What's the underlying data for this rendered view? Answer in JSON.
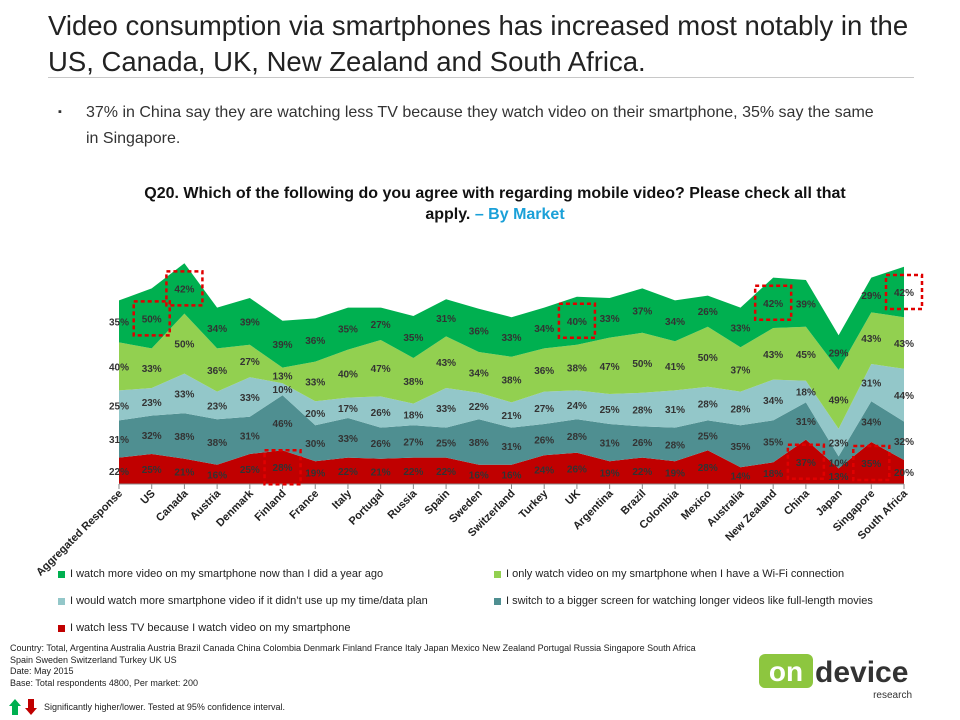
{
  "slide": {
    "title": "Video consumption via smartphones has increased most notably in the US, Canada, UK, New Zealand and South Africa.",
    "bullet_marker": "▪",
    "bullet": "37% in China say they are watching less TV because they watch video on their smartphone, 35% say the same in Singapore."
  },
  "chart_data": {
    "type": "area",
    "title": "Q20. Which of the following do you agree with regarding mobile video?  Please check all that apply.",
    "subtitle": "– By Market",
    "stacked": true,
    "categories": [
      "Aggregated Response",
      "US",
      "Canada",
      "Austria",
      "Denmark",
      "Finland",
      "France",
      "Italy",
      "Portugal",
      "Russia",
      "Spain",
      "Sweden",
      "Switzerland",
      "Turkey",
      "UK",
      "Argentina",
      "Brazil",
      "Colombia",
      "Mexico",
      "Australia",
      "New Zealand",
      "China",
      "Japan",
      "Singapore",
      "South Africa"
    ],
    "series": [
      {
        "name": "I watch less TV because I watch video on my smartphone",
        "color": "#c00000",
        "values": [
          22,
          25,
          21,
          16,
          25,
          28,
          19,
          22,
          21,
          22,
          22,
          16,
          16,
          24,
          26,
          19,
          22,
          19,
          28,
          14,
          18,
          37,
          13,
          35,
          20
        ]
      },
      {
        "name": "I switch to a bigger screen for watching longer videos like full-length movies",
        "color": "#4f8f91",
        "values": [
          31,
          32,
          38,
          38,
          31,
          46,
          30,
          33,
          26,
          27,
          25,
          38,
          31,
          26,
          28,
          31,
          26,
          28,
          25,
          35,
          35,
          31,
          10,
          34,
          32
        ]
      },
      {
        "name": "I would watch more smartphone video if it didn’t use up my time/data plan",
        "color": "#93c7c9",
        "values": [
          25,
          23,
          33,
          23,
          33,
          10,
          20,
          17,
          26,
          18,
          33,
          22,
          21,
          27,
          24,
          25,
          28,
          31,
          28,
          28,
          34,
          18,
          23,
          31,
          44
        ]
      },
      {
        "name": "I only watch video on my smartphone when I have a Wi-Fi connection",
        "color": "#92d050",
        "values": [
          40,
          33,
          50,
          36,
          27,
          13,
          33,
          40,
          47,
          38,
          43,
          34,
          38,
          36,
          38,
          47,
          50,
          41,
          50,
          37,
          43,
          45,
          49,
          43,
          43
        ]
      },
      {
        "name": "I watch more video on my smartphone now than I did a year ago",
        "color": "#00b050",
        "values": [
          35,
          50,
          42,
          34,
          39,
          39,
          36,
          35,
          27,
          35,
          31,
          36,
          33,
          34,
          40,
          33,
          37,
          34,
          26,
          33,
          42,
          39,
          29,
          29,
          42
        ]
      }
    ],
    "highlights": [
      {
        "category": "US",
        "series": "I watch more video on my smartphone now than I did a year ago",
        "direction": "higher"
      },
      {
        "category": "Canada",
        "series": "I watch more video on my smartphone now than I did a year ago",
        "direction": "higher"
      },
      {
        "category": "UK",
        "series": "I watch more video on my smartphone now than I did a year ago",
        "direction": "higher"
      },
      {
        "category": "New Zealand",
        "series": "I watch more video on my smartphone now than I did a year ago",
        "direction": "higher"
      },
      {
        "category": "South Africa",
        "series": "I watch more video on my smartphone now than I did a year ago",
        "direction": "higher"
      },
      {
        "category": "Finland",
        "series": "I watch less TV because I watch video on my smartphone",
        "direction": "higher"
      },
      {
        "category": "China",
        "series": "I watch less TV because I watch video on my smartphone",
        "direction": "higher"
      },
      {
        "category": "Singapore",
        "series": "I watch less TV because I watch video on my smartphone",
        "direction": "higher"
      }
    ],
    "grid": false,
    "legend_position": "bottom"
  },
  "legend": {
    "items": [
      {
        "label": "I watch more video on my smartphone now than I did a year ago",
        "color": "#00b050"
      },
      {
        "label": "I only watch video on my smartphone when I have a Wi-Fi connection",
        "color": "#92d050"
      },
      {
        "label": "I would watch more smartphone video if it didn’t use up my time/data plan",
        "color": "#93c7c9"
      },
      {
        "label": "I switch to a bigger screen for watching longer videos like full-length movies",
        "color": "#4f8f91"
      },
      {
        "label": "I watch less TV because I watch video on my smartphone",
        "color": "#c00000"
      }
    ]
  },
  "footnote": {
    "country_line1": "Country: Total, Argentina Australia Austria Brazil Canada China Colombia Denmark Finland France Italy Japan Mexico New Zealand Portugal Russia Singapore South Africa",
    "country_line2": "Spain Sweden Switzerland Turkey UK US",
    "date": "Date: May 2015",
    "base": "Base: Total respondents 4800, Per market: 200"
  },
  "significance_note": "Significantly higher/lower. Tested at 95% confidence interval.",
  "logo": {
    "on": "on",
    "device": "device",
    "research": "research",
    "color_green": "#8dc63f",
    "color_dark": "#333333"
  }
}
